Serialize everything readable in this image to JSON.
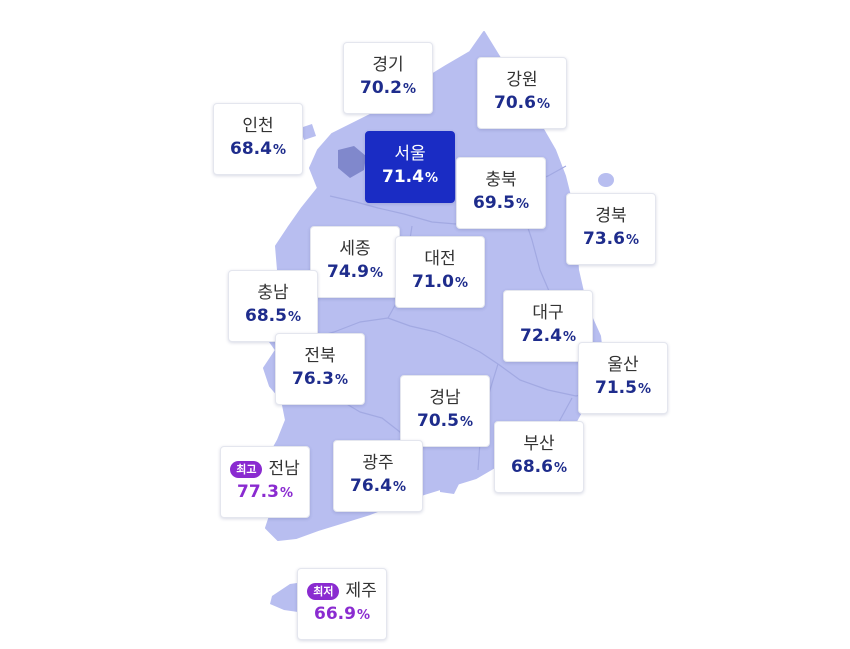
{
  "regions": [
    {
      "id": "gyeonggi",
      "name": "경기",
      "value": "70.2",
      "unit": "%"
    },
    {
      "id": "gangwon",
      "name": "강원",
      "value": "70.6",
      "unit": "%"
    },
    {
      "id": "incheon",
      "name": "인천",
      "value": "68.4",
      "unit": "%"
    },
    {
      "id": "seoul",
      "name": "서울",
      "value": "71.4",
      "unit": "%",
      "selected": true
    },
    {
      "id": "chungbuk",
      "name": "충북",
      "value": "69.5",
      "unit": "%"
    },
    {
      "id": "gyeongbuk",
      "name": "경북",
      "value": "73.6",
      "unit": "%"
    },
    {
      "id": "sejong",
      "name": "세종",
      "value": "74.9",
      "unit": "%"
    },
    {
      "id": "daejeon",
      "name": "대전",
      "value": "71.0",
      "unit": "%"
    },
    {
      "id": "chungnam",
      "name": "충남",
      "value": "68.5",
      "unit": "%"
    },
    {
      "id": "daegu",
      "name": "대구",
      "value": "72.4",
      "unit": "%"
    },
    {
      "id": "jeonbuk",
      "name": "전북",
      "value": "76.3",
      "unit": "%"
    },
    {
      "id": "ulsan",
      "name": "울산",
      "value": "71.5",
      "unit": "%"
    },
    {
      "id": "gyeongnam",
      "name": "경남",
      "value": "70.5",
      "unit": "%"
    },
    {
      "id": "busan",
      "name": "부산",
      "value": "68.6",
      "unit": "%"
    },
    {
      "id": "jeonnam",
      "name": "전남",
      "value": "77.3",
      "unit": "%",
      "badge": "최고",
      "highlight": true
    },
    {
      "id": "gwangju",
      "name": "광주",
      "value": "76.4",
      "unit": "%"
    },
    {
      "id": "jeju",
      "name": "제주",
      "value": "66.9",
      "unit": "%",
      "badge": "최저",
      "highlight": true
    }
  ],
  "colors": {
    "land": "#b8bef0",
    "border": "#a2a9e2",
    "selected": "#1a2cc4",
    "value": "#1e2c8c",
    "highlight": "#8a2bd0"
  }
}
